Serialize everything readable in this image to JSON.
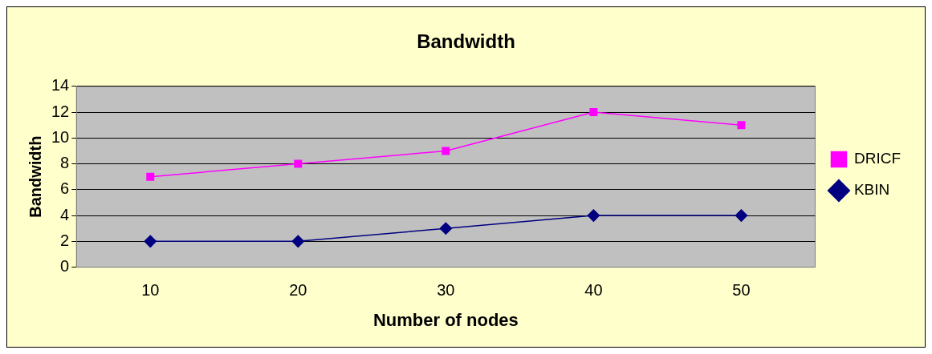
{
  "chart_data": {
    "type": "line",
    "title": "Bandwidth",
    "xlabel": "Number of nodes",
    "ylabel": "Bandwidth",
    "categories": [
      "10",
      "20",
      "30",
      "40",
      "50"
    ],
    "series": [
      {
        "name": "DRICF",
        "color": "#ff00ff",
        "marker": "square",
        "values": [
          7,
          8,
          9,
          12,
          11
        ]
      },
      {
        "name": "KBIN",
        "color": "#000080",
        "marker": "diamond",
        "values": [
          2,
          2,
          3,
          4,
          4
        ]
      }
    ],
    "ylim": [
      0,
      14
    ],
    "yticks": [
      0,
      2,
      4,
      6,
      8,
      10,
      12,
      14
    ],
    "grid": "y",
    "legend": "right"
  }
}
